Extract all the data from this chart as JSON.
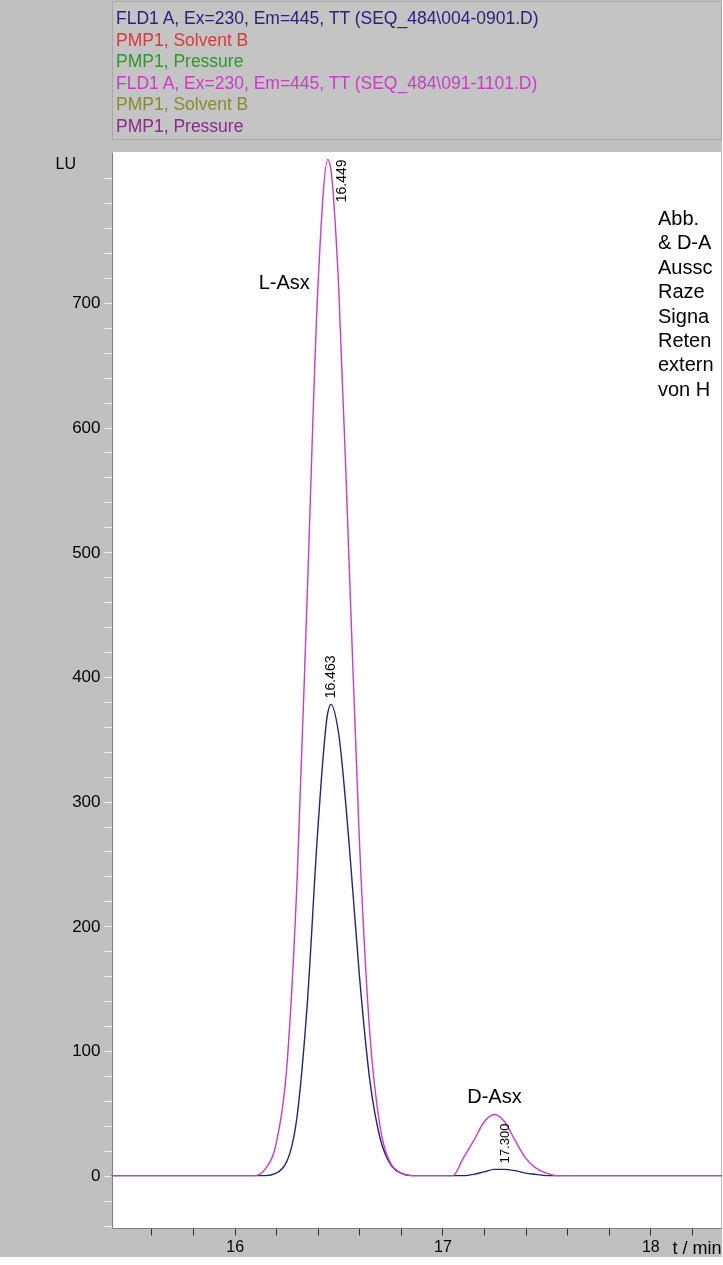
{
  "chart_data": {
    "type": "line",
    "xlabel": "t / min",
    "ylabel": "LU",
    "legend": "top",
    "x": [
      15.41,
      16.0,
      16.1,
      16.15,
      16.2,
      16.25,
      16.3,
      16.35,
      16.4,
      16.449,
      16.463,
      16.5,
      16.55,
      16.6,
      16.65,
      16.7,
      16.75,
      16.8,
      16.85,
      16.9,
      17.0,
      17.05,
      17.1,
      17.15,
      17.2,
      17.25,
      17.3,
      17.35,
      17.4,
      17.45,
      17.5,
      17.55,
      17.6,
      18.34
    ],
    "xlim": [
      15.41,
      18.34
    ],
    "xticks": [
      {
        "value": 15.6,
        "label": null
      },
      {
        "value": 15.8,
        "label": null
      },
      16,
      {
        "value": 16.2,
        "label": null
      },
      {
        "value": 16.4,
        "label": null
      },
      {
        "value": 16.6,
        "label": null
      },
      {
        "value": 16.8,
        "label": null
      },
      17,
      {
        "value": 17.2,
        "label": null
      },
      {
        "value": 17.4,
        "label": null
      },
      {
        "value": 17.6,
        "label": null
      },
      {
        "value": 17.8,
        "label": null
      },
      18,
      {
        "value": 18.2,
        "label": null
      }
    ],
    "ylim": [
      -42,
      821
    ],
    "yticks": [
      {
        "value": -40,
        "label": null
      },
      {
        "value": -20,
        "label": null
      },
      0,
      {
        "value": 20,
        "label": null
      },
      {
        "value": 40,
        "label": null
      },
      {
        "value": 60,
        "label": null
      },
      {
        "value": 80,
        "label": null
      },
      100,
      {
        "value": 120,
        "label": null
      },
      {
        "value": 140,
        "label": null
      },
      {
        "value": 160,
        "label": null
      },
      {
        "value": 180,
        "label": null
      },
      200,
      {
        "value": 220,
        "label": null
      },
      {
        "value": 240,
        "label": null
      },
      {
        "value": 260,
        "label": null
      },
      {
        "value": 280,
        "label": null
      },
      300,
      {
        "value": 320,
        "label": null
      },
      {
        "value": 340,
        "label": null
      },
      {
        "value": 360,
        "label": null
      },
      {
        "value": 380,
        "label": null
      },
      400,
      {
        "value": 420,
        "label": null
      },
      {
        "value": 440,
        "label": null
      },
      {
        "value": 460,
        "label": null
      },
      {
        "value": 480,
        "label": null
      },
      500,
      {
        "value": 520,
        "label": null
      },
      {
        "value": 540,
        "label": null
      },
      {
        "value": 560,
        "label": null
      },
      {
        "value": 580,
        "label": null
      },
      600,
      {
        "value": 620,
        "label": null
      },
      {
        "value": 640,
        "label": null
      },
      {
        "value": 660,
        "label": null
      },
      {
        "value": 680,
        "label": null
      },
      700,
      {
        "value": 720,
        "label": null
      },
      {
        "value": 740,
        "label": null
      },
      {
        "value": 760,
        "label": null
      },
      {
        "value": 780,
        "label": null
      },
      {
        "value": 800,
        "label": null
      }
    ],
    "series": [
      {
        "name": "FLD1 A, Ex=230, Em=445, TT (SEQ_484\\004-0901.D)",
        "color": "#24247a",
        "values": [
          0,
          0,
          0,
          0,
          2,
          11,
          47,
          139,
          277,
          372,
          378,
          355,
          268,
          161,
          77,
          30,
          9,
          2,
          0,
          0,
          0,
          0,
          0,
          1,
          3,
          5,
          5,
          4,
          2,
          1,
          0,
          0,
          0,
          0
        ]
      },
      {
        "name": "PMP1, Solvent B",
        "color": "#d83a3a",
        "values": [
          null,
          null,
          null,
          null,
          null,
          null,
          null,
          null,
          null,
          null,
          null,
          null,
          null,
          null,
          null,
          null,
          null,
          null,
          null,
          null,
          null,
          null,
          null,
          null,
          null,
          null,
          null,
          null,
          null,
          null,
          null,
          null,
          null,
          null
        ]
      },
      {
        "name": "PMP1, Pressure",
        "color": "#2a9a2a",
        "values": [
          null,
          null,
          null,
          null,
          null,
          null,
          null,
          null,
          null,
          null,
          null,
          null,
          null,
          null,
          null,
          null,
          null,
          null,
          null,
          null,
          null,
          null,
          null,
          null,
          null,
          null,
          null,
          null,
          null,
          null,
          null,
          null,
          null,
          null
        ]
      },
      {
        "name": "FLD1 A, Ex=230, Em=445, TT (SEQ_484\\091-1101.D)",
        "color": "#c83cc8",
        "values": [
          0,
          0,
          0,
          6,
          26,
          85,
          235,
          470,
          710,
          815,
          807,
          715,
          495,
          270,
          115,
          39,
          10,
          2,
          0,
          0,
          0,
          0,
          14,
          28,
          43,
          49,
          43,
          28,
          14,
          6,
          2,
          0,
          0,
          0
        ]
      },
      {
        "name": "PMP1, Solvent B",
        "color": "#8a8a30",
        "values": [
          null,
          null,
          null,
          null,
          null,
          null,
          null,
          null,
          null,
          null,
          null,
          null,
          null,
          null,
          null,
          null,
          null,
          null,
          null,
          null,
          null,
          null,
          null,
          null,
          null,
          null,
          null,
          null,
          null,
          null,
          null,
          null,
          null,
          null
        ]
      },
      {
        "name": "PMP1, Pressure",
        "color": "#8a2a8a",
        "values": [
          null,
          null,
          null,
          null,
          null,
          null,
          null,
          null,
          null,
          null,
          null,
          null,
          null,
          null,
          null,
          null,
          null,
          null,
          null,
          null,
          null,
          null,
          null,
          null,
          null,
          null,
          null,
          null,
          null,
          null,
          null,
          null,
          null,
          null
        ]
      }
    ],
    "annotations": [
      {
        "text": "L-Asx",
        "x": 16.4,
        "y": 716
      },
      {
        "text": "D-Asx",
        "x": 17.25,
        "y": 49
      },
      {
        "text": "16.449",
        "x": 16.449,
        "y": 815
      },
      {
        "text": "16.463",
        "x": 16.463,
        "y": 378
      },
      {
        "text": "17.300",
        "x": 17.3,
        "y": 5
      },
      "Abb.\n& D-A\nAussc\nRaze\nSigna\nReten\nextern\nvon H"
    ]
  }
}
